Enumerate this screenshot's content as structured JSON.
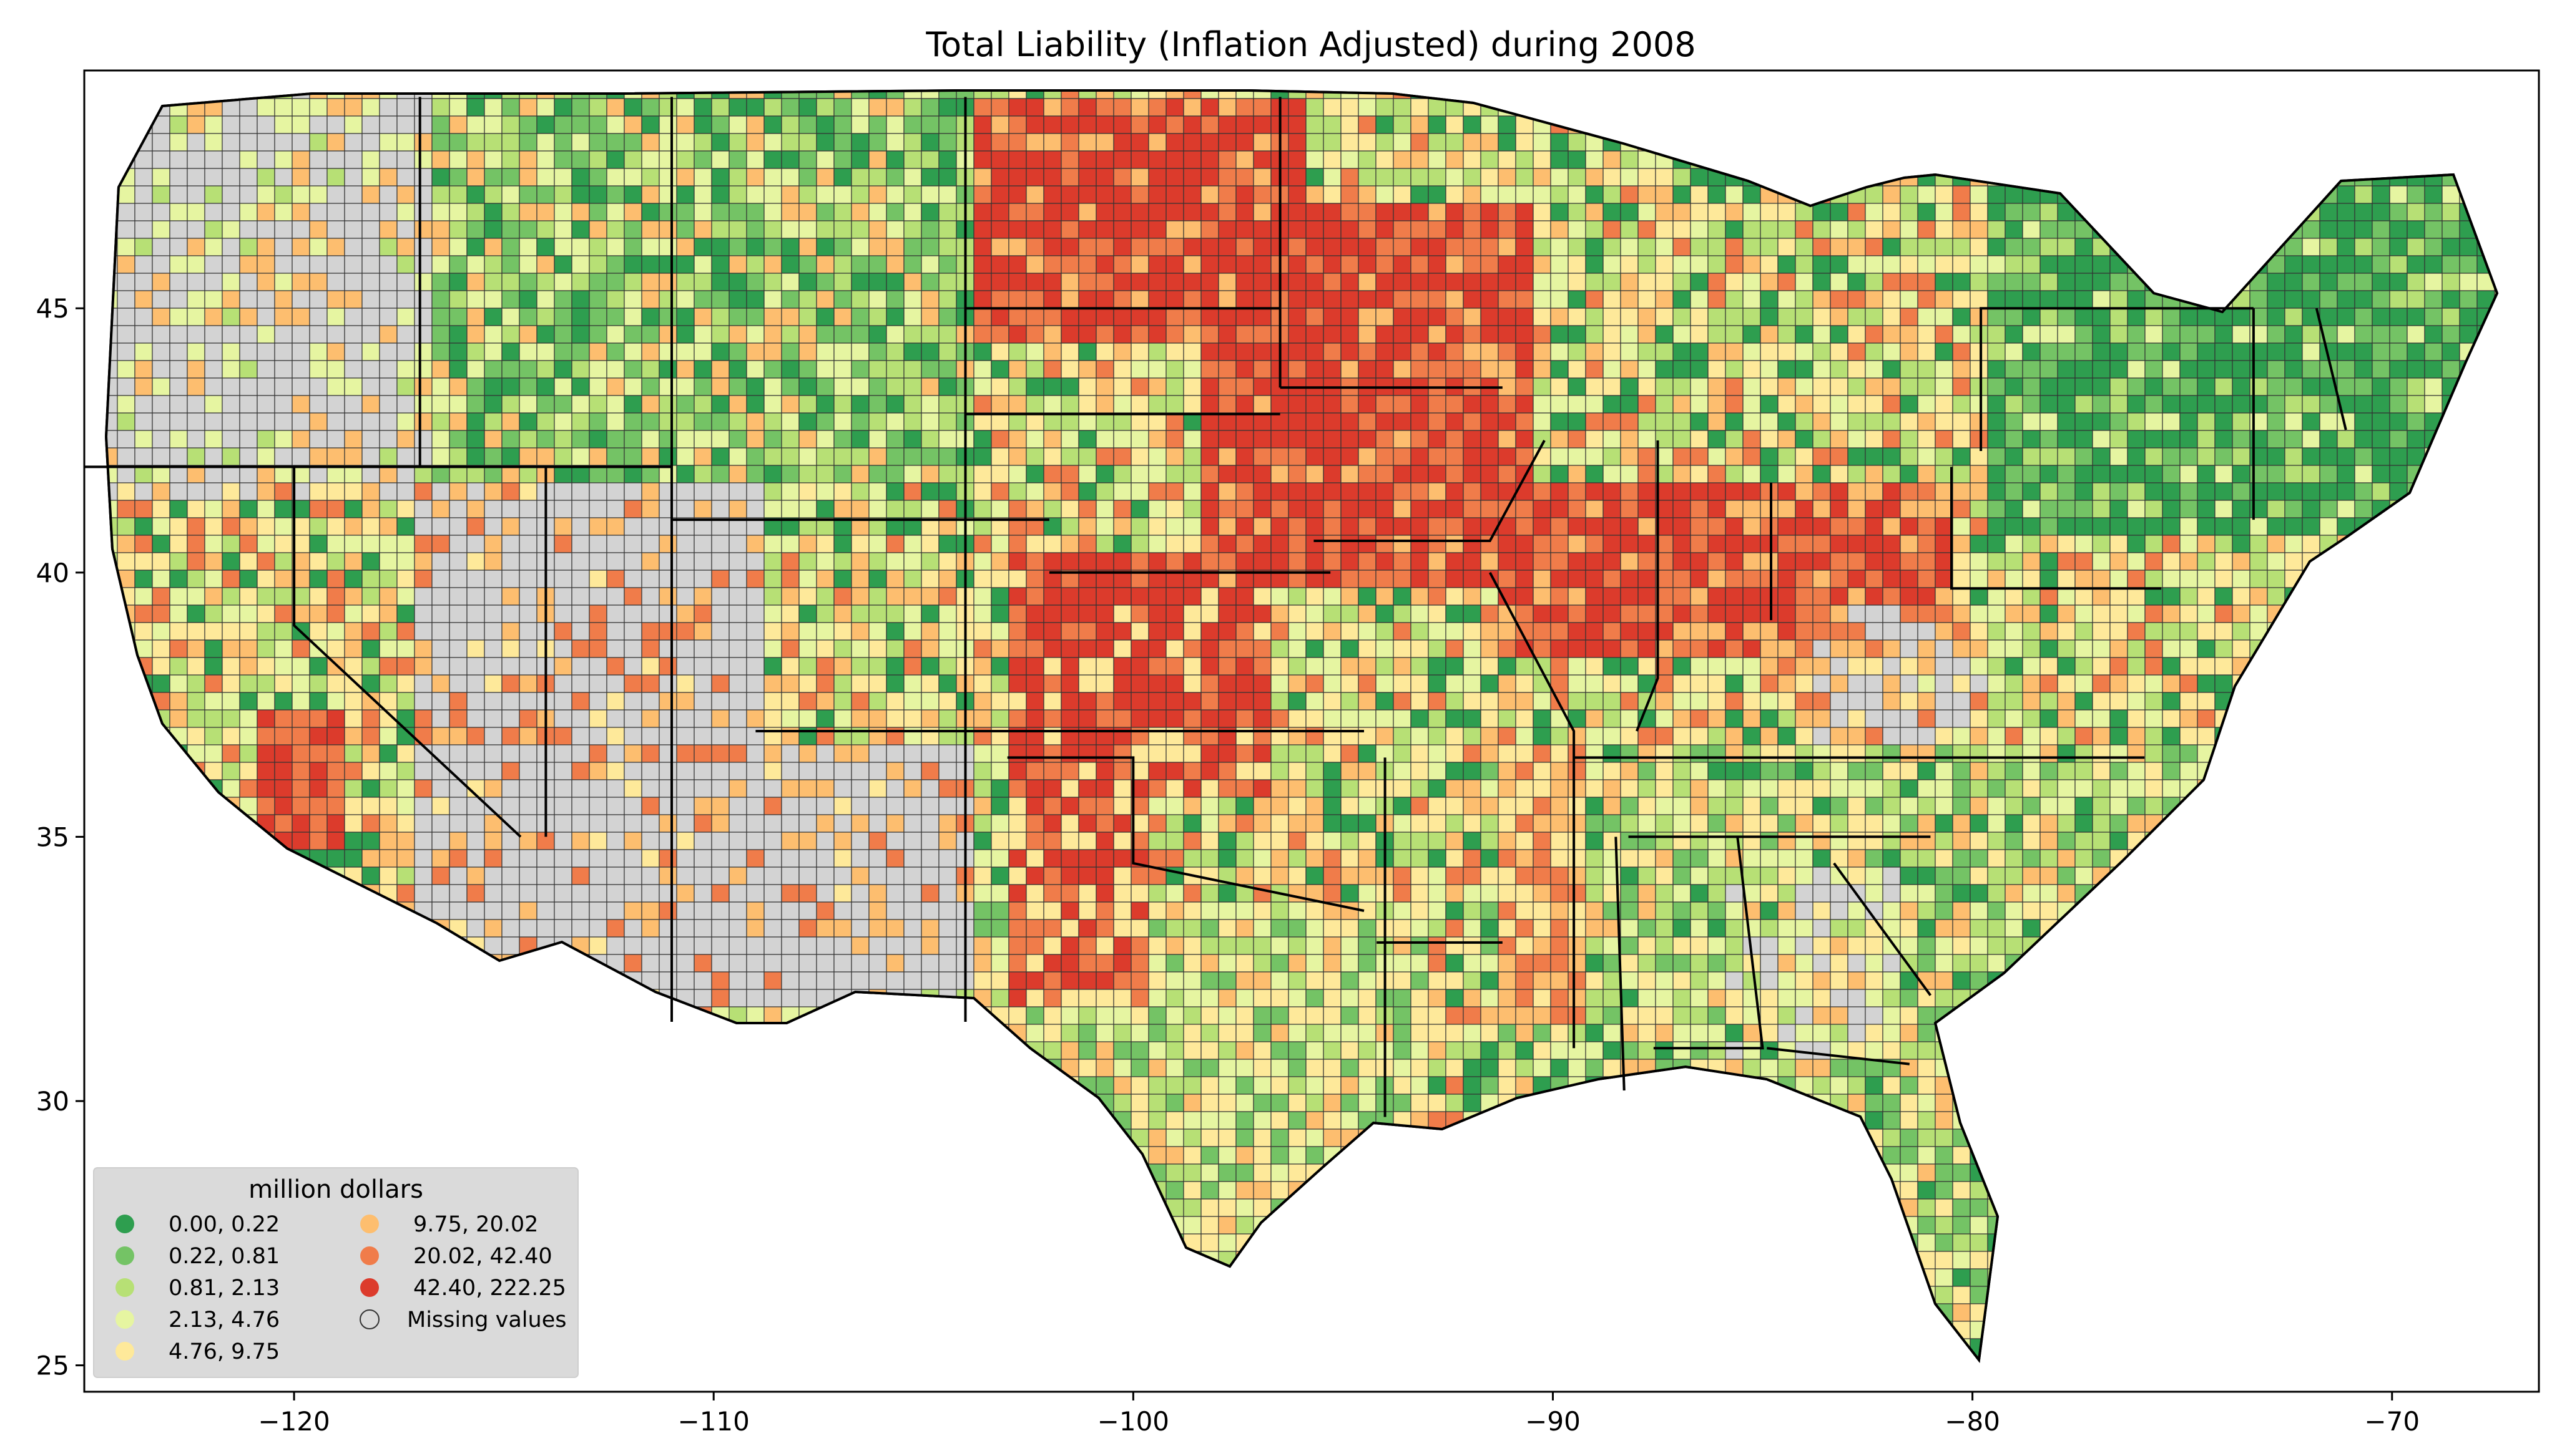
{
  "chart_data": {
    "type": "choropleth",
    "title": "Total Liability  (Inflation Adjusted) during 2008",
    "xlim": [
      -125,
      -66.5
    ],
    "ylim": [
      24.5,
      49.5
    ],
    "x_ticks": [
      {
        "value": -120,
        "label": "−120"
      },
      {
        "value": -110,
        "label": "−110"
      },
      {
        "value": -100,
        "label": "−100"
      },
      {
        "value": -90,
        "label": "−90"
      },
      {
        "value": -80,
        "label": "−80"
      },
      {
        "value": -70,
        "label": "−70"
      }
    ],
    "y_ticks": [
      {
        "value": 25,
        "label": "25"
      },
      {
        "value": 30,
        "label": "30"
      },
      {
        "value": 35,
        "label": "35"
      },
      {
        "value": 40,
        "label": "40"
      },
      {
        "value": 45,
        "label": "45"
      }
    ],
    "legend": {
      "title": "million dollars",
      "position": "lower-left",
      "items": [
        {
          "label": "0.00,   0.22",
          "color": "#2e9e4f"
        },
        {
          "label": "0.22,   0.81",
          "color": "#74c365"
        },
        {
          "label": "0.81,   2.13",
          "color": "#b7e075"
        },
        {
          "label": "2.13,   4.76",
          "color": "#e6f5a1"
        },
        {
          "label": "4.76,   9.75",
          "color": "#fee99a"
        },
        {
          "label": "9.75,  20.02",
          "color": "#fdbe6f"
        },
        {
          "label": "20.02,  42.40",
          "color": "#f07c4a"
        },
        {
          "label": "42.40, 222.25",
          "color": "#dc3b2c"
        },
        {
          "label": "Missing values",
          "color": "#d3d3d3"
        }
      ]
    }
  }
}
